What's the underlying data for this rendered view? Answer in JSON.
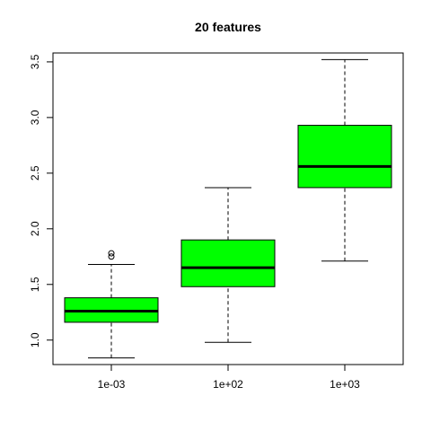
{
  "chart_data": {
    "type": "box",
    "title": "20 features",
    "xlabel": "",
    "ylabel": "",
    "ylim": [
      0.78,
      3.58
    ],
    "yticks": [
      "1.0",
      "1.5",
      "2.0",
      "2.5",
      "3.0",
      "3.5"
    ],
    "categories": [
      "1e-03",
      "1e+02",
      "1e+03"
    ],
    "box_color": "#00ff00",
    "boxes": [
      {
        "category": "1e-03",
        "whisker_low": 0.84,
        "q1": 1.16,
        "median": 1.26,
        "q3": 1.38,
        "whisker_high": 1.68,
        "outliers": [
          1.75,
          1.78
        ]
      },
      {
        "category": "1e+02",
        "whisker_low": 0.98,
        "q1": 1.48,
        "median": 1.65,
        "q3": 1.9,
        "whisker_high": 2.37,
        "outliers": []
      },
      {
        "category": "1e+03",
        "whisker_low": 1.71,
        "q1": 2.37,
        "median": 2.56,
        "q3": 2.93,
        "whisker_high": 3.52,
        "outliers": []
      }
    ]
  }
}
